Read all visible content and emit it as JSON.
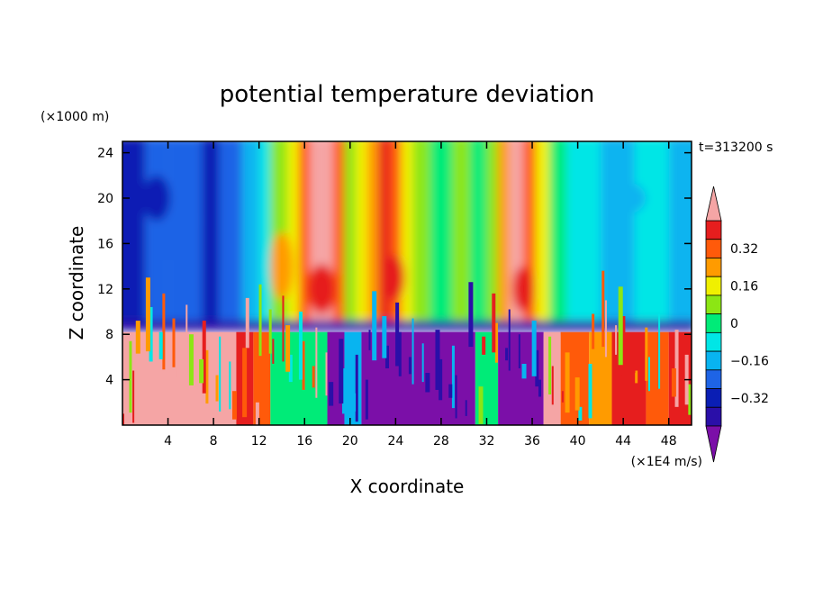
{
  "chart_data": {
    "type": "heatmap",
    "title": "potential temperature deviation",
    "xlabel": "X coordinate",
    "ylabel": "Z coordinate",
    "x_unit": "(×1E4 m/s)",
    "y_unit": "(×1000 m)",
    "time_label": "t=313200 s",
    "xlim": [
      0,
      50
    ],
    "ylim": [
      0,
      25
    ],
    "x_ticks": [
      4,
      8,
      12,
      16,
      20,
      24,
      28,
      32,
      36,
      40,
      44,
      48
    ],
    "y_ticks": [
      4,
      8,
      12,
      16,
      20,
      24
    ],
    "colorbar": {
      "levels": [
        -0.4,
        -0.32,
        -0.24,
        -0.16,
        -0.08,
        0,
        0.08,
        0.16,
        0.24,
        0.32,
        0.4
      ],
      "tick_labels": [
        "0.32",
        "0.16",
        "0",
        "−0.16",
        "−0.32"
      ],
      "tick_values": [
        0.32,
        0.16,
        0,
        -0.16,
        -0.32
      ],
      "colors": [
        "#7b0fa8",
        "#2a0fa8",
        "#0a1eb4",
        "#1e64e6",
        "#08b4f0",
        "#00e6e6",
        "#00eb78",
        "#8ce614",
        "#f0f000",
        "#ff9b00",
        "#ff5a0a",
        "#e61e1e",
        "#f5a5a5"
      ]
    }
  }
}
